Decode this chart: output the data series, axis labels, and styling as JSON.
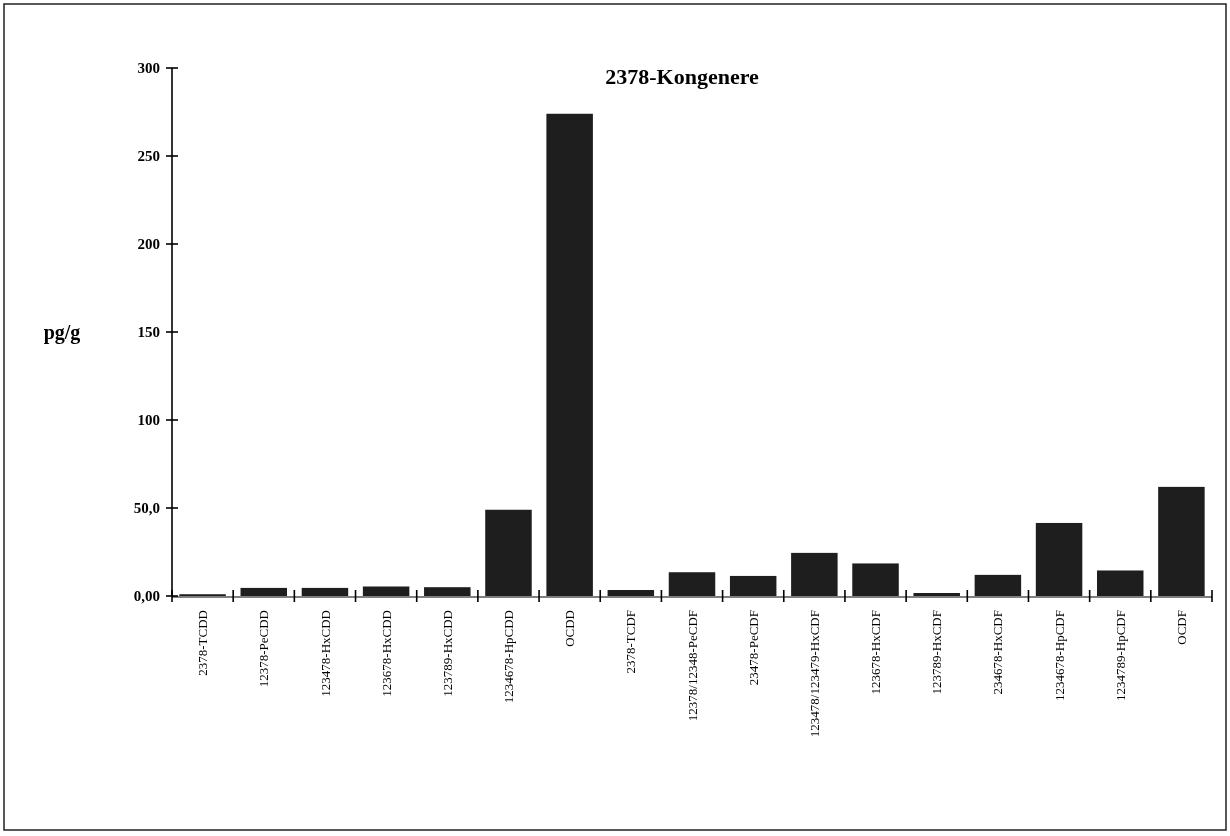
{
  "chart_data": {
    "type": "bar",
    "title": "2378-Kongenere",
    "ylabel": "pg/g",
    "categories": [
      "2378-TCDD",
      "12378-PeCDD",
      "123478-HxCDD",
      "123678-HxCDD",
      "123789-HxCDD",
      "1234678-HpCDD",
      "OCDD",
      "2378-TCDF",
      "12378/12348-PeCDF",
      "23478-PeCDF",
      "123478/123479-HxCDF",
      "123678-HxCDF",
      "123789-HxCDF",
      "234678-HxCDF",
      "1234678-HpCDF",
      "1234789-HpCDF",
      "OCDF"
    ],
    "values": [
      1,
      4.6,
      4.6,
      5.4,
      5,
      49,
      274,
      3.4,
      13.5,
      11.4,
      24.5,
      18.5,
      1.7,
      12,
      41.5,
      14.5,
      62
    ],
    "color": "#1e1e1e",
    "ylim": [
      0,
      300
    ],
    "yticks": [
      {
        "value": 0,
        "label": "0,00"
      },
      {
        "value": 50,
        "label": "50,0"
      },
      100,
      150,
      200,
      250,
      300
    ],
    "grid": false
  }
}
